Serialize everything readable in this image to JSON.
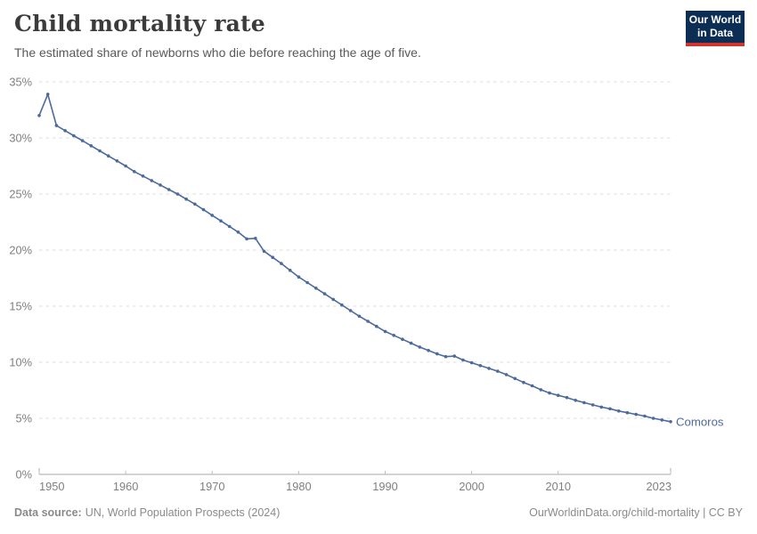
{
  "header": {
    "title": "Child mortality rate",
    "subtitle": "The estimated share of newborns who die before reaching the age of five.",
    "logo": {
      "line1": "Our World",
      "line2": "in Data",
      "bg_color": "#0d2e54",
      "accent_color": "#d0342c"
    }
  },
  "chart_data": {
    "type": "line",
    "title": "Child mortality rate",
    "entity": "Comoros",
    "color": "#4C6A9C",
    "grid": true,
    "legend_position": "end-of-line",
    "xlim": [
      1950,
      2023
    ],
    "ylim": [
      0,
      35
    ],
    "x_ticks": [
      1950,
      1960,
      1970,
      1980,
      1990,
      2000,
      2010,
      2023
    ],
    "y_ticks": [
      0,
      5,
      10,
      15,
      20,
      25,
      30,
      35
    ],
    "y_tick_suffix": "%",
    "x": [
      1950,
      1951,
      1952,
      1953,
      1954,
      1955,
      1956,
      1957,
      1958,
      1959,
      1960,
      1961,
      1962,
      1963,
      1964,
      1965,
      1966,
      1967,
      1968,
      1969,
      1970,
      1971,
      1972,
      1973,
      1974,
      1975,
      1976,
      1977,
      1978,
      1979,
      1980,
      1981,
      1982,
      1983,
      1984,
      1985,
      1986,
      1987,
      1988,
      1989,
      1990,
      1991,
      1992,
      1993,
      1994,
      1995,
      1996,
      1997,
      1998,
      1999,
      2000,
      2001,
      2002,
      2003,
      2004,
      2005,
      2006,
      2007,
      2008,
      2009,
      2010,
      2011,
      2012,
      2013,
      2014,
      2015,
      2016,
      2017,
      2018,
      2019,
      2020,
      2021,
      2022,
      2023
    ],
    "values": [
      32.0,
      33.9,
      31.1,
      30.65,
      30.2,
      29.75,
      29.3,
      28.85,
      28.4,
      27.95,
      27.5,
      27.0,
      26.6,
      26.2,
      25.8,
      25.4,
      25.0,
      24.55,
      24.1,
      23.6,
      23.1,
      22.6,
      22.1,
      21.6,
      21.0,
      21.05,
      19.9,
      19.35,
      18.8,
      18.2,
      17.6,
      17.1,
      16.6,
      16.1,
      15.6,
      15.1,
      14.6,
      14.1,
      13.65,
      13.2,
      12.75,
      12.4,
      12.05,
      11.7,
      11.35,
      11.05,
      10.75,
      10.5,
      10.55,
      10.2,
      9.95,
      9.7,
      9.45,
      9.2,
      8.9,
      8.55,
      8.2,
      7.9,
      7.55,
      7.25,
      7.05,
      6.85,
      6.6,
      6.4,
      6.2,
      6.0,
      5.85,
      5.65,
      5.5,
      5.35,
      5.2,
      5.0,
      4.85,
      4.7
    ]
  },
  "footer": {
    "source_label": "Data source:",
    "source_value": "UN, World Population Prospects (2024)",
    "attribution": "OurWorldinData.org/child-mortality | CC BY"
  }
}
